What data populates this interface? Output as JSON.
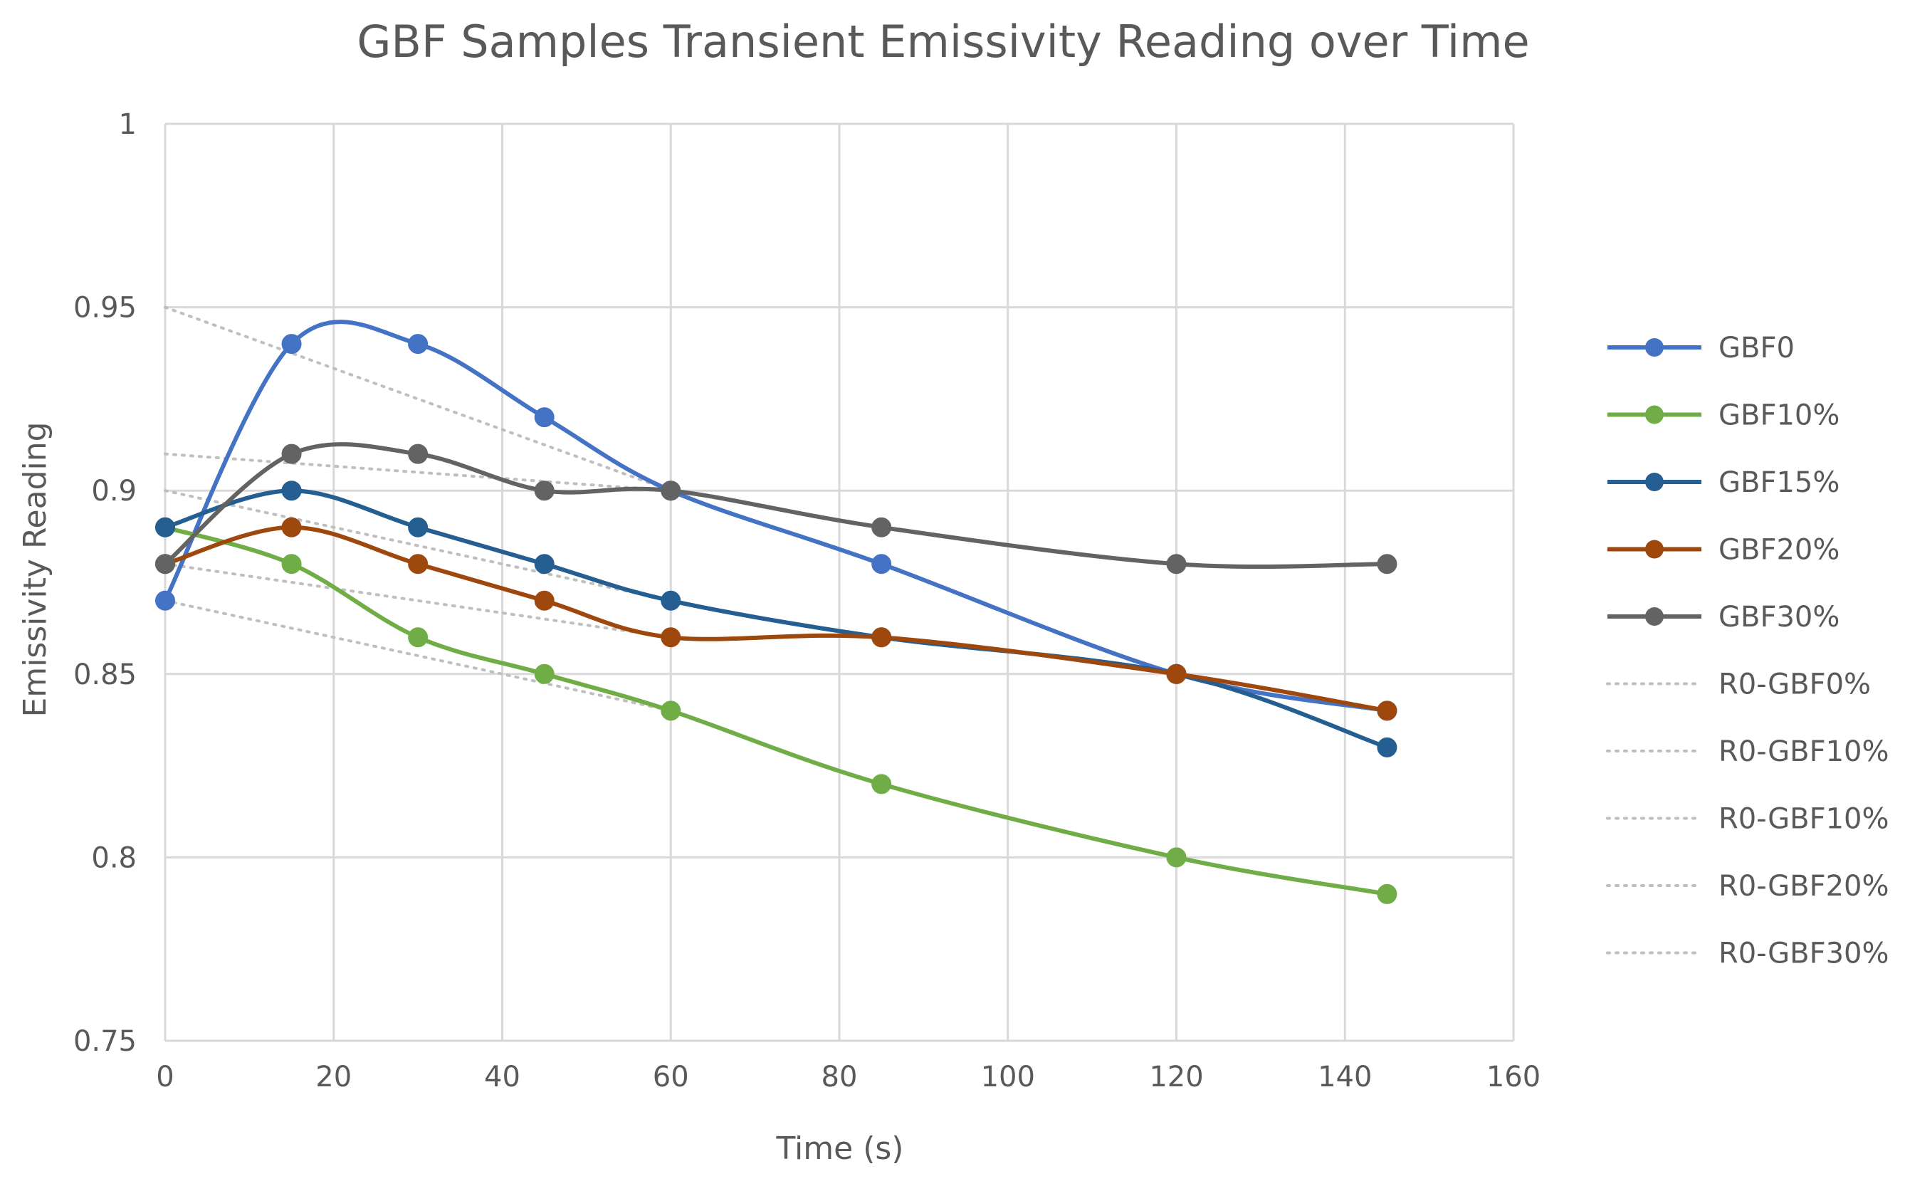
{
  "chart_data": {
    "type": "line",
    "title": "GBF Samples Transient Emissivity Reading over Time",
    "xlabel": "Time (s)",
    "ylabel": "Emissivity Reading",
    "xlim": [
      0,
      160
    ],
    "ylim": [
      0.75,
      1.0
    ],
    "x_ticks": [
      0,
      20,
      40,
      60,
      80,
      100,
      120,
      140,
      160
    ],
    "y_ticks": [
      0.75,
      0.8,
      0.85,
      0.9,
      0.95,
      1
    ],
    "x_tick_labels": [
      "0",
      "20",
      "40",
      "60",
      "80",
      "100",
      "120",
      "140",
      "160"
    ],
    "y_tick_labels": [
      "0.75",
      "0.8",
      "0.85",
      "0.9",
      "0.95",
      "1"
    ],
    "grid": true,
    "legend_position": "right",
    "x": [
      0,
      15,
      30,
      45,
      60,
      85,
      120,
      145
    ],
    "series": [
      {
        "name": "GBF0",
        "color": "#4472C4",
        "values": [
          0.87,
          0.94,
          0.94,
          0.92,
          0.9,
          0.88,
          0.85,
          0.84
        ],
        "last_value": 0.84
      },
      {
        "name": "GBF10%",
        "color": "#70AD47",
        "values": [
          0.89,
          0.88,
          0.86,
          0.85,
          0.84,
          0.82,
          0.8,
          0.79
        ]
      },
      {
        "name": "GBF15%",
        "color": "#255E91",
        "values": [
          0.89,
          0.9,
          0.89,
          0.88,
          0.87,
          0.86,
          0.85,
          0.83
        ]
      },
      {
        "name": "GBF20%",
        "color": "#9E480E",
        "values": [
          0.88,
          0.89,
          0.88,
          0.87,
          0.86,
          0.86,
          0.85,
          0.84
        ]
      },
      {
        "name": "GBF30%",
        "color": "#636363",
        "values": [
          0.88,
          0.91,
          0.91,
          0.9,
          0.9,
          0.89,
          0.88,
          0.88
        ]
      }
    ],
    "trendlines": [
      {
        "name": "R0-GBF0%",
        "color": "#bfbfbf",
        "x": [
          0,
          60
        ],
        "values": [
          0.95,
          0.9
        ]
      },
      {
        "name": "R0-GBF10%",
        "color": "#bfbfbf",
        "x": [
          0,
          60
        ],
        "values": [
          0.87,
          0.84
        ]
      },
      {
        "name": "R0-GBF10%",
        "color": "#bfbfbf",
        "x": [
          0,
          60
        ],
        "values": [
          0.9,
          0.87
        ]
      },
      {
        "name": "R0-GBF20%",
        "color": "#bfbfbf",
        "x": [
          0,
          60
        ],
        "values": [
          0.88,
          0.86
        ]
      },
      {
        "name": "R0-GBF30%",
        "color": "#bfbfbf",
        "x": [
          0,
          60
        ],
        "values": [
          0.91,
          0.9
        ]
      }
    ]
  }
}
